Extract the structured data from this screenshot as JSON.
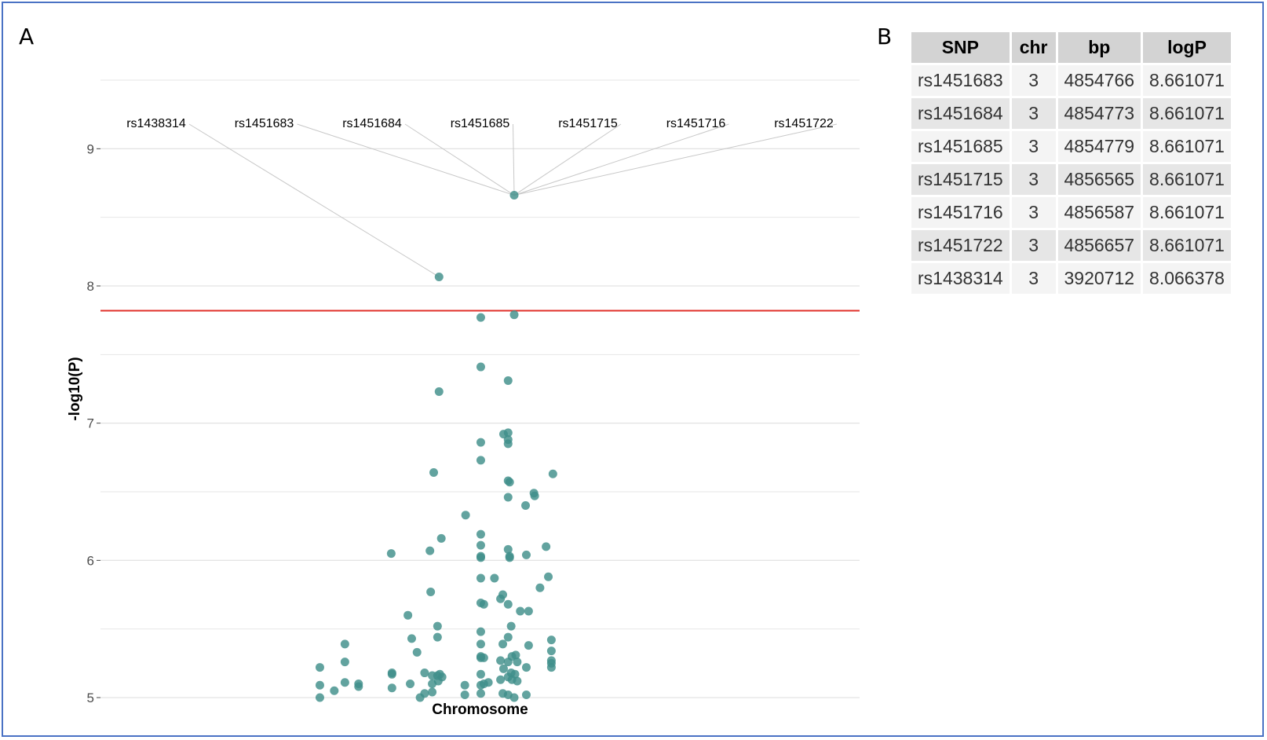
{
  "panels": {
    "a_label": "A",
    "b_label": "B"
  },
  "colors": {
    "point": "#3f8f8a",
    "threshold": "#e0302a",
    "grid": "#e4e4e4",
    "border": "#4a72c4"
  },
  "chart_data": [
    {
      "type": "scatter",
      "title": "",
      "xlabel": "Chromosome",
      "ylabel": "-log10(P)",
      "ylim": [
        5,
        9.5
      ],
      "xlim": [
        0,
        1
      ],
      "yticks": [
        5,
        6,
        7,
        8,
        9
      ],
      "grid": true,
      "threshold": 7.82,
      "annotations": [
        {
          "label": "rs1438314",
          "x": 0.446,
          "y": 8.066378
        },
        {
          "label": "rs1451683",
          "x": 0.545,
          "y": 8.661071
        },
        {
          "label": "rs1451684",
          "x": 0.545,
          "y": 8.661071
        },
        {
          "label": "rs1451685",
          "x": 0.545,
          "y": 8.661071
        },
        {
          "label": "rs1451715",
          "x": 0.545,
          "y": 8.661071
        },
        {
          "label": "rs1451716",
          "x": 0.545,
          "y": 8.661071
        },
        {
          "label": "rs1451722",
          "x": 0.545,
          "y": 8.661071
        }
      ],
      "points": [
        [
          0.545,
          8.661
        ],
        [
          0.446,
          8.066
        ],
        [
          0.501,
          7.77
        ],
        [
          0.545,
          7.79
        ],
        [
          0.501,
          7.41
        ],
        [
          0.537,
          7.31
        ],
        [
          0.446,
          7.23
        ],
        [
          0.501,
          6.86
        ],
        [
          0.501,
          6.73
        ],
        [
          0.531,
          6.92
        ],
        [
          0.537,
          6.93
        ],
        [
          0.537,
          6.88
        ],
        [
          0.537,
          6.85
        ],
        [
          0.537,
          6.58
        ],
        [
          0.539,
          6.57
        ],
        [
          0.537,
          6.46
        ],
        [
          0.439,
          6.64
        ],
        [
          0.596,
          6.63
        ],
        [
          0.571,
          6.49
        ],
        [
          0.572,
          6.47
        ],
        [
          0.56,
          6.4
        ],
        [
          0.481,
          6.33
        ],
        [
          0.501,
          6.19
        ],
        [
          0.501,
          6.11
        ],
        [
          0.449,
          6.16
        ],
        [
          0.383,
          6.05
        ],
        [
          0.434,
          6.07
        ],
        [
          0.501,
          6.03
        ],
        [
          0.501,
          6.02
        ],
        [
          0.537,
          6.08
        ],
        [
          0.539,
          6.02
        ],
        [
          0.539,
          6.03
        ],
        [
          0.561,
          6.04
        ],
        [
          0.587,
          6.1
        ],
        [
          0.501,
          5.87
        ],
        [
          0.519,
          5.87
        ],
        [
          0.59,
          5.88
        ],
        [
          0.579,
          5.8
        ],
        [
          0.435,
          5.77
        ],
        [
          0.501,
          5.69
        ],
        [
          0.505,
          5.68
        ],
        [
          0.527,
          5.72
        ],
        [
          0.53,
          5.75
        ],
        [
          0.537,
          5.68
        ],
        [
          0.553,
          5.63
        ],
        [
          0.564,
          5.63
        ],
        [
          0.405,
          5.6
        ],
        [
          0.444,
          5.52
        ],
        [
          0.501,
          5.48
        ],
        [
          0.541,
          5.52
        ],
        [
          0.41,
          5.43
        ],
        [
          0.444,
          5.44
        ],
        [
          0.501,
          5.39
        ],
        [
          0.537,
          5.44
        ],
        [
          0.53,
          5.39
        ],
        [
          0.564,
          5.38
        ],
        [
          0.594,
          5.42
        ],
        [
          0.322,
          5.39
        ],
        [
          0.417,
          5.33
        ],
        [
          0.594,
          5.34
        ],
        [
          0.289,
          5.22
        ],
        [
          0.322,
          5.26
        ],
        [
          0.384,
          5.18
        ],
        [
          0.384,
          5.17
        ],
        [
          0.427,
          5.18
        ],
        [
          0.437,
          5.16
        ],
        [
          0.447,
          5.17
        ],
        [
          0.444,
          5.16
        ],
        [
          0.45,
          5.15
        ],
        [
          0.501,
          5.3
        ],
        [
          0.501,
          5.29
        ],
        [
          0.505,
          5.29
        ],
        [
          0.527,
          5.27
        ],
        [
          0.531,
          5.21
        ],
        [
          0.537,
          5.26
        ],
        [
          0.542,
          5.3
        ],
        [
          0.547,
          5.31
        ],
        [
          0.549,
          5.26
        ],
        [
          0.541,
          5.18
        ],
        [
          0.546,
          5.17
        ],
        [
          0.561,
          5.22
        ],
        [
          0.594,
          5.25
        ],
        [
          0.594,
          5.22
        ],
        [
          0.594,
          5.27
        ],
        [
          0.289,
          5.09
        ],
        [
          0.34,
          5.1
        ],
        [
          0.34,
          5.08
        ],
        [
          0.322,
          5.11
        ],
        [
          0.308,
          5.05
        ],
        [
          0.384,
          5.07
        ],
        [
          0.408,
          5.1
        ],
        [
          0.437,
          5.1
        ],
        [
          0.445,
          5.12
        ],
        [
          0.48,
          5.09
        ],
        [
          0.501,
          5.09
        ],
        [
          0.501,
          5.17
        ],
        [
          0.505,
          5.1
        ],
        [
          0.511,
          5.11
        ],
        [
          0.527,
          5.13
        ],
        [
          0.537,
          5.15
        ],
        [
          0.542,
          5.13
        ],
        [
          0.549,
          5.12
        ],
        [
          0.289,
          5.0
        ],
        [
          0.421,
          5.0
        ],
        [
          0.427,
          5.03
        ],
        [
          0.437,
          5.04
        ],
        [
          0.48,
          5.02
        ],
        [
          0.501,
          5.03
        ],
        [
          0.53,
          5.03
        ],
        [
          0.537,
          5.02
        ],
        [
          0.545,
          5.0
        ],
        [
          0.561,
          5.02
        ]
      ]
    },
    {
      "type": "table",
      "columns": [
        "SNP",
        "chr",
        "bp",
        "logP"
      ],
      "rows": [
        [
          "rs1451683",
          "3",
          "4854766",
          "8.661071"
        ],
        [
          "rs1451684",
          "3",
          "4854773",
          "8.661071"
        ],
        [
          "rs1451685",
          "3",
          "4854779",
          "8.661071"
        ],
        [
          "rs1451715",
          "3",
          "4856565",
          "8.661071"
        ],
        [
          "rs1451716",
          "3",
          "4856587",
          "8.661071"
        ],
        [
          "rs1451722",
          "3",
          "4856657",
          "8.661071"
        ],
        [
          "rs1438314",
          "3",
          "3920712",
          "8.066378"
        ]
      ]
    }
  ]
}
